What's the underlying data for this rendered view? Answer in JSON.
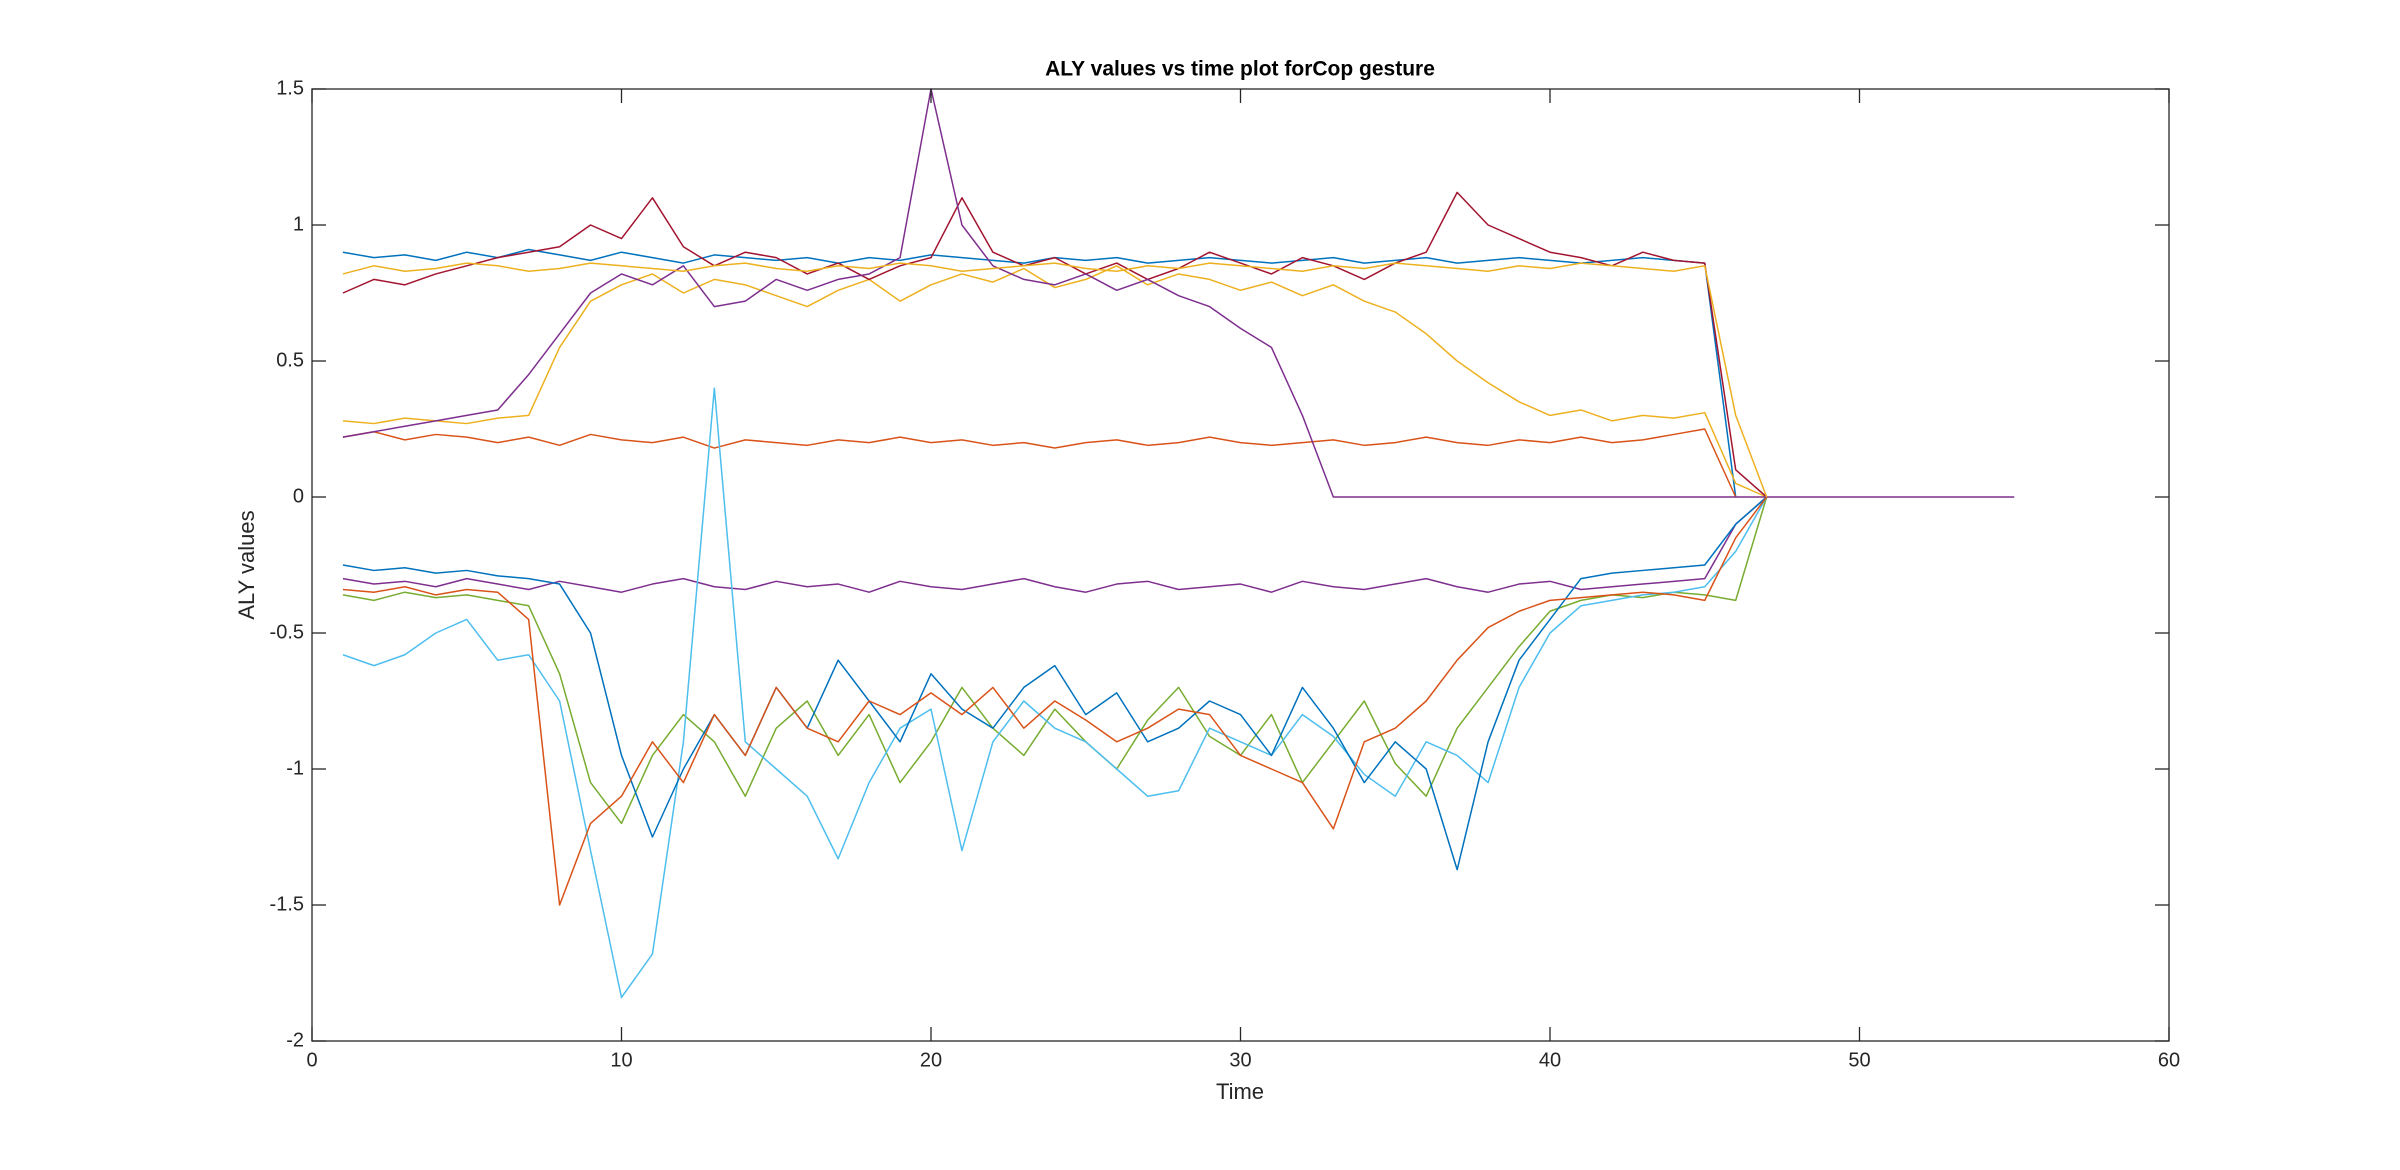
{
  "chart_data": {
    "type": "line",
    "title": "ALY values vs time plot forCop gesture",
    "x_label": "Time",
    "y_label": "ALY values",
    "x": [
      1,
      2,
      3,
      4,
      5,
      6,
      7,
      8,
      9,
      10,
      11,
      12,
      13,
      14,
      15,
      16,
      17,
      18,
      19,
      20,
      21,
      22,
      23,
      24,
      25,
      26,
      27,
      28,
      29,
      30,
      31,
      32,
      33,
      34,
      35,
      36,
      37,
      38,
      39,
      40,
      41,
      42,
      43,
      44,
      45,
      46,
      47,
      48,
      49,
      50,
      51,
      52,
      53,
      54,
      55
    ],
    "xlim": [
      0,
      60
    ],
    "xticks": [
      0,
      10,
      20,
      30,
      40,
      50,
      60
    ],
    "ylim": [
      -2,
      1.5
    ],
    "yticks": [
      -2,
      -1.5,
      -1,
      -0.5,
      0,
      0.5,
      1,
      1.5
    ],
    "grid": false,
    "series": [
      {
        "color": "#0072BD",
        "values": [
          0.9,
          0.88,
          0.89,
          0.87,
          0.9,
          0.88,
          0.91,
          0.89,
          0.87,
          0.9,
          0.88,
          0.86,
          0.89,
          0.88,
          0.87,
          0.88,
          0.86,
          0.88,
          0.87,
          0.89,
          0.88,
          0.87,
          0.86,
          0.88,
          0.87,
          0.88,
          0.86,
          0.87,
          0.88,
          0.87,
          0.86,
          0.87,
          0.88,
          0.86,
          0.87,
          0.88,
          0.86,
          0.87,
          0.88,
          0.87,
          0.86,
          0.87,
          0.88,
          0.87,
          0.86,
          0,
          null,
          null,
          null,
          null,
          null,
          null,
          null,
          null,
          null
        ]
      },
      {
        "color": "#D95319",
        "values": [
          0.22,
          0.24,
          0.21,
          0.23,
          0.22,
          0.2,
          0.22,
          0.19,
          0.23,
          0.21,
          0.2,
          0.22,
          0.18,
          0.21,
          0.2,
          0.19,
          0.21,
          0.2,
          0.22,
          0.2,
          0.21,
          0.19,
          0.2,
          0.18,
          0.2,
          0.21,
          0.19,
          0.2,
          0.22,
          0.2,
          0.19,
          0.2,
          0.21,
          0.19,
          0.2,
          0.22,
          0.2,
          0.19,
          0.21,
          0.2,
          0.22,
          0.2,
          0.21,
          0.23,
          0.25,
          0,
          null,
          null,
          null,
          null,
          null,
          null,
          null,
          null,
          null
        ]
      },
      {
        "color": "#EDB120",
        "values": [
          0.28,
          0.27,
          0.29,
          0.28,
          0.27,
          0.29,
          0.3,
          0.55,
          0.72,
          0.78,
          0.82,
          0.75,
          0.8,
          0.78,
          0.74,
          0.7,
          0.76,
          0.8,
          0.72,
          0.78,
          0.82,
          0.79,
          0.84,
          0.77,
          0.8,
          0.85,
          0.78,
          0.82,
          0.8,
          0.76,
          0.79,
          0.74,
          0.78,
          0.72,
          0.68,
          0.6,
          0.5,
          0.42,
          0.35,
          0.3,
          0.32,
          0.28,
          0.3,
          0.29,
          0.31,
          0.05,
          0,
          null,
          null,
          null,
          null,
          null,
          null,
          null,
          null
        ]
      },
      {
        "color": "#7E2F8E",
        "values": [
          -0.3,
          -0.32,
          -0.31,
          -0.33,
          -0.3,
          -0.32,
          -0.34,
          -0.31,
          -0.33,
          -0.35,
          -0.32,
          -0.3,
          -0.33,
          -0.34,
          -0.31,
          -0.33,
          -0.32,
          -0.35,
          -0.31,
          -0.33,
          -0.34,
          -0.32,
          -0.3,
          -0.33,
          -0.35,
          -0.32,
          -0.31,
          -0.34,
          -0.33,
          -0.32,
          -0.35,
          -0.31,
          -0.33,
          -0.34,
          -0.32,
          -0.3,
          -0.33,
          -0.35,
          -0.32,
          -0.31,
          -0.34,
          -0.33,
          -0.32,
          -0.31,
          -0.3,
          -0.1,
          0,
          null,
          null,
          null,
          null,
          null,
          null,
          null,
          null
        ]
      },
      {
        "color": "#77AC30",
        "values": [
          -0.36,
          -0.38,
          -0.35,
          -0.37,
          -0.36,
          -0.38,
          -0.4,
          -0.65,
          -1.05,
          -1.2,
          -0.95,
          -0.8,
          -0.9,
          -1.1,
          -0.85,
          -0.75,
          -0.95,
          -0.8,
          -1.05,
          -0.9,
          -0.7,
          -0.85,
          -0.95,
          -0.78,
          -0.9,
          -1.0,
          -0.82,
          -0.7,
          -0.88,
          -0.95,
          -0.8,
          -1.05,
          -0.9,
          -0.75,
          -0.98,
          -1.1,
          -0.85,
          -0.7,
          -0.55,
          -0.42,
          -0.38,
          -0.36,
          -0.37,
          -0.35,
          -0.36,
          -0.38,
          0,
          null,
          null,
          null,
          null,
          null,
          null,
          null,
          null
        ]
      },
      {
        "color": "#4DBEEE",
        "values": [
          -0.58,
          -0.62,
          -0.58,
          -0.5,
          -0.45,
          -0.6,
          -0.58,
          -0.75,
          -1.3,
          -1.84,
          -1.68,
          -0.9,
          0.4,
          -0.9,
          -1.0,
          -1.1,
          -1.33,
          -1.05,
          -0.85,
          -0.78,
          -1.3,
          -0.9,
          -0.75,
          -0.85,
          -0.9,
          -1.0,
          -1.1,
          -1.08,
          -0.85,
          -0.9,
          -0.95,
          -0.8,
          -0.88,
          -1.02,
          -1.1,
          -0.9,
          -0.95,
          -1.05,
          -0.7,
          -0.5,
          -0.4,
          -0.38,
          -0.36,
          -0.35,
          -0.33,
          -0.2,
          0,
          null,
          null,
          null,
          null,
          null,
          null,
          null,
          null
        ]
      },
      {
        "color": "#A2142F",
        "values": [
          0.75,
          0.8,
          0.78,
          0.82,
          0.85,
          0.88,
          0.9,
          0.92,
          1.0,
          0.95,
          1.1,
          0.92,
          0.85,
          0.9,
          0.88,
          0.82,
          0.86,
          0.8,
          0.85,
          0.88,
          1.1,
          0.9,
          0.85,
          0.88,
          0.82,
          0.86,
          0.8,
          0.84,
          0.9,
          0.86,
          0.82,
          0.88,
          0.85,
          0.8,
          0.86,
          0.9,
          1.12,
          1.0,
          0.95,
          0.9,
          0.88,
          0.85,
          0.9,
          0.87,
          0.86,
          0.1,
          0,
          null,
          null,
          null,
          null,
          null,
          null,
          null,
          null
        ]
      },
      {
        "color": "#7E2F8E",
        "values": [
          0.22,
          0.24,
          0.26,
          0.28,
          0.3,
          0.32,
          0.45,
          0.6,
          0.75,
          0.82,
          0.78,
          0.85,
          0.7,
          0.72,
          0.8,
          0.76,
          0.8,
          0.82,
          0.88,
          1.5,
          1.0,
          0.85,
          0.8,
          0.78,
          0.82,
          0.76,
          0.8,
          0.74,
          0.7,
          0.62,
          0.55,
          0.3,
          0,
          0,
          0,
          0,
          0,
          0,
          0,
          0,
          0,
          0,
          0,
          0,
          0,
          0,
          0,
          0,
          0,
          0,
          0,
          0,
          0,
          0,
          0
        ]
      },
      {
        "color": "#0072BD",
        "values": [
          -0.25,
          -0.27,
          -0.26,
          -0.28,
          -0.27,
          -0.29,
          -0.3,
          -0.32,
          -0.5,
          -0.95,
          -1.25,
          -1.0,
          -0.8,
          -0.95,
          -0.7,
          -0.85,
          -0.6,
          -0.75,
          -0.9,
          -0.65,
          -0.78,
          -0.85,
          -0.7,
          -0.62,
          -0.8,
          -0.72,
          -0.9,
          -0.85,
          -0.75,
          -0.8,
          -0.95,
          -0.7,
          -0.85,
          -1.05,
          -0.9,
          -1.0,
          -1.37,
          -0.9,
          -0.6,
          -0.45,
          -0.3,
          -0.28,
          -0.27,
          -0.26,
          -0.25,
          -0.1,
          0,
          null,
          null,
          null,
          null,
          null,
          null,
          null,
          null
        ]
      },
      {
        "color": "#D95319",
        "values": [
          -0.34,
          -0.35,
          -0.33,
          -0.36,
          -0.34,
          -0.35,
          -0.45,
          -1.5,
          -1.2,
          -1.1,
          -0.9,
          -1.05,
          -0.8,
          -0.95,
          -0.7,
          -0.85,
          -0.9,
          -0.75,
          -0.8,
          -0.72,
          -0.8,
          -0.7,
          -0.85,
          -0.75,
          -0.82,
          -0.9,
          -0.85,
          -0.78,
          -0.8,
          -0.95,
          -1.0,
          -1.05,
          -1.22,
          -0.9,
          -0.85,
          -0.75,
          -0.6,
          -0.48,
          -0.42,
          -0.38,
          -0.37,
          -0.36,
          -0.35,
          -0.36,
          -0.38,
          -0.15,
          0,
          null,
          null,
          null,
          null,
          null,
          null,
          null,
          null
        ]
      },
      {
        "color": "#EDB120",
        "values": [
          0.82,
          0.85,
          0.83,
          0.84,
          0.86,
          0.85,
          0.83,
          0.84,
          0.86,
          0.85,
          0.84,
          0.83,
          0.85,
          0.86,
          0.84,
          0.83,
          0.85,
          0.84,
          0.86,
          0.85,
          0.83,
          0.84,
          0.85,
          0.86,
          0.84,
          0.83,
          0.85,
          0.84,
          0.86,
          0.85,
          0.84,
          0.83,
          0.85,
          0.84,
          0.86,
          0.85,
          0.84,
          0.83,
          0.85,
          0.84,
          0.86,
          0.85,
          0.84,
          0.83,
          0.85,
          0.3,
          0,
          null,
          null,
          null,
          null,
          null,
          null,
          null,
          null
        ]
      }
    ]
  }
}
